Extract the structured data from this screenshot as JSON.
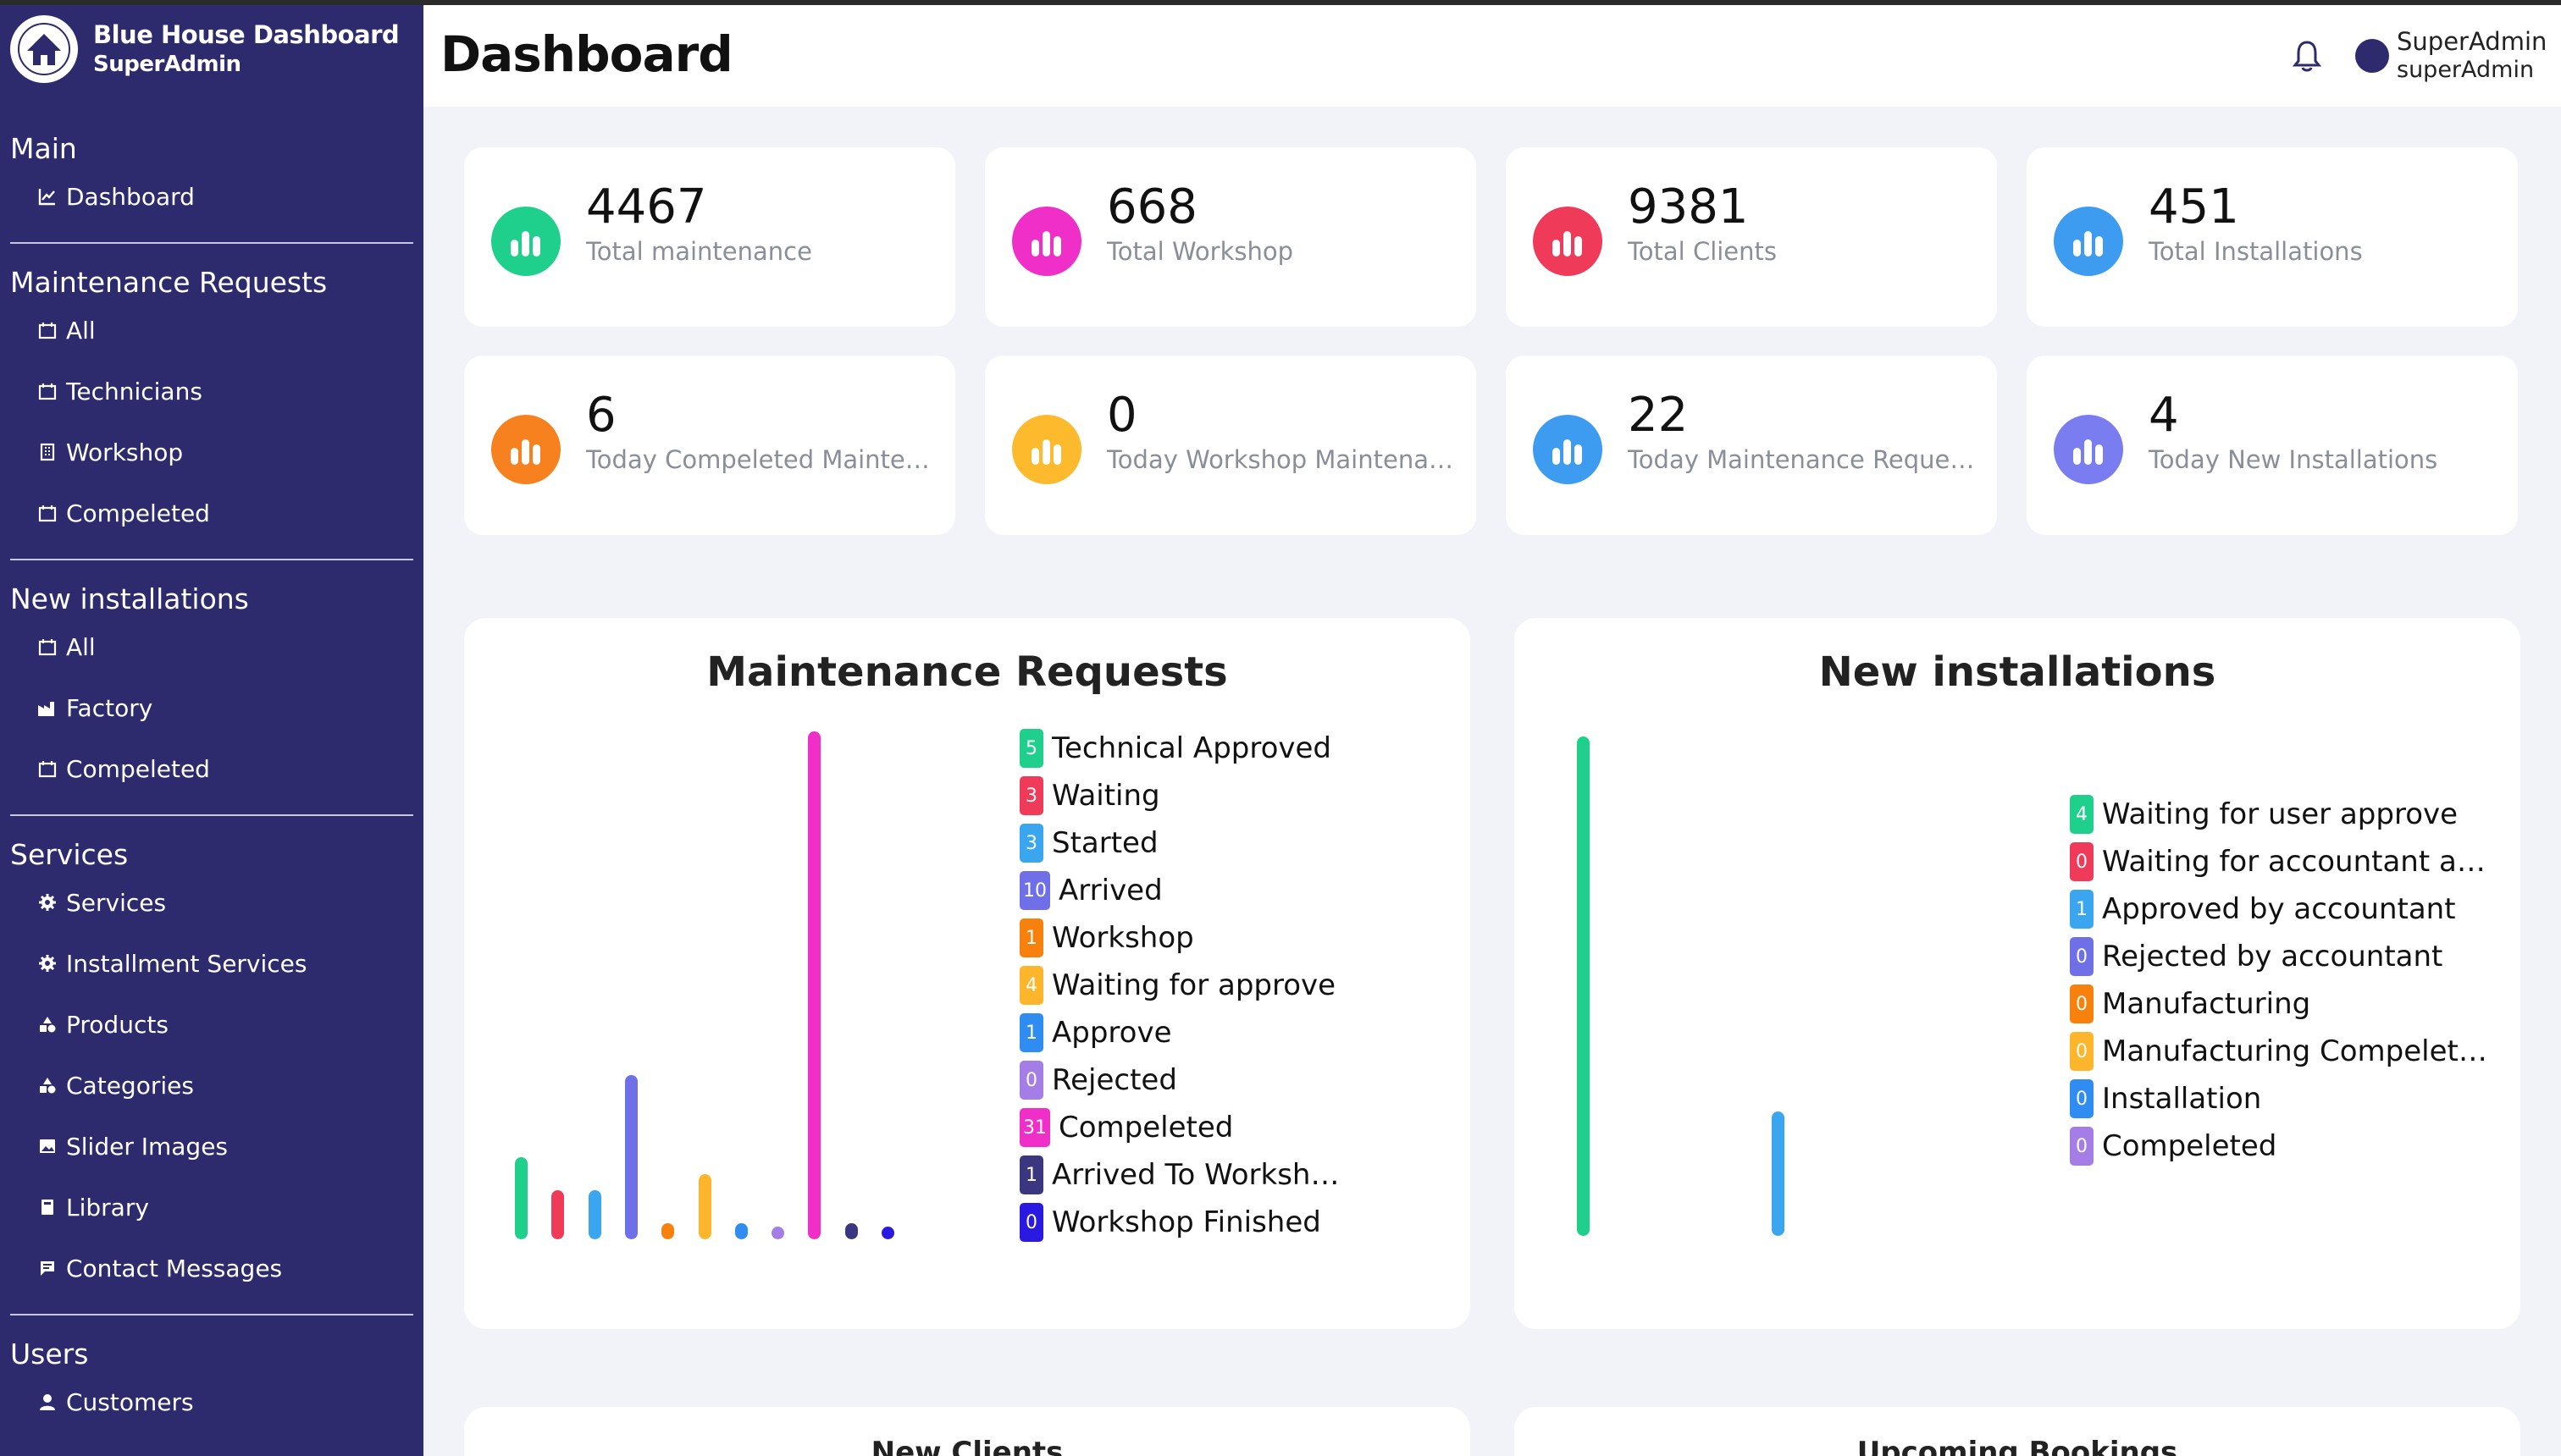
{
  "brand": {
    "title": "Blue House Dashboard",
    "subtitle": "SuperAdmin"
  },
  "sidebar": {
    "sections": [
      {
        "title": "Main",
        "items": [
          {
            "label": "Dashboard",
            "icon": "chart-icon"
          }
        ]
      },
      {
        "title": "Maintenance Requests",
        "items": [
          {
            "label": "All",
            "icon": "calendar-icon"
          },
          {
            "label": "Technicians",
            "icon": "calendar-icon"
          },
          {
            "label": "Workshop",
            "icon": "building-icon"
          },
          {
            "label": "Compeleted",
            "icon": "calendar-icon"
          }
        ]
      },
      {
        "title": "New installations",
        "items": [
          {
            "label": "All",
            "icon": "calendar-icon"
          },
          {
            "label": "Factory",
            "icon": "factory-icon"
          },
          {
            "label": "Compeleted",
            "icon": "calendar-icon"
          }
        ]
      },
      {
        "title": "Services",
        "items": [
          {
            "label": "Services",
            "icon": "gear-icon"
          },
          {
            "label": "Installment Services",
            "icon": "gear-icon"
          },
          {
            "label": "Products",
            "icon": "shapes-icon"
          },
          {
            "label": "Categories",
            "icon": "shapes-icon"
          },
          {
            "label": "Slider Images",
            "icon": "image-icon"
          },
          {
            "label": "Library",
            "icon": "book-icon"
          },
          {
            "label": "Contact Messages",
            "icon": "message-icon"
          }
        ]
      },
      {
        "title": "Users",
        "items": [
          {
            "label": "Customers",
            "icon": "person-icon"
          }
        ]
      }
    ]
  },
  "header": {
    "title": "Dashboard",
    "user_name": "SuperAdmin",
    "user_role": "superAdmin"
  },
  "stats": [
    {
      "value": "4467",
      "label": "Total maintenance",
      "color": "#1fd08d"
    },
    {
      "value": "668",
      "label": "Total Workshop",
      "color": "#f02fc9"
    },
    {
      "value": "9381",
      "label": "Total Clients",
      "color": "#f03a5a"
    },
    {
      "value": "451",
      "label": "Total Installations",
      "color": "#3d9cf0"
    },
    {
      "value": "6",
      "label": "Today Compeleted Maintenance",
      "color": "#f7811e"
    },
    {
      "value": "0",
      "label": "Today Workshop Maintenance",
      "color": "#fdba2c"
    },
    {
      "value": "22",
      "label": "Today Maintenance Requests",
      "color": "#3d9cf0"
    },
    {
      "value": "4",
      "label": "Today New Installations",
      "color": "#7a7df0"
    }
  ],
  "chart_data": [
    {
      "type": "bar",
      "title": "Maintenance Requests",
      "categories": [
        "Technical Approved",
        "Waiting",
        "Started",
        "Arrived",
        "Workshop",
        "Waiting for approve",
        "Approve",
        "Rejected",
        "Compeleted",
        "Arrived To Workshop",
        "Workshop Finished"
      ],
      "values": [
        5,
        3,
        3,
        10,
        1,
        4,
        1,
        0,
        31,
        1,
        0
      ],
      "colors": [
        "#1fd08d",
        "#f03a5a",
        "#3ba6f0",
        "#6f6fe8",
        "#f7810c",
        "#fdb62b",
        "#2f8cf0",
        "#a57de6",
        "#f02fc9",
        "#3b3680",
        "#2a19e0"
      ],
      "ylim": [
        0,
        31
      ]
    },
    {
      "type": "bar",
      "title": "New installations",
      "categories": [
        "Waiting for user approve",
        "Waiting for accountant approve",
        "Approved by accountant",
        "Rejected by accountant",
        "Manufacturing",
        "Manufacturing Compeleted",
        "Installation",
        "Compeleted"
      ],
      "values": [
        4,
        0,
        1,
        0,
        0,
        0,
        0,
        0
      ],
      "colors": [
        "#1fd08d",
        "#f03a5a",
        "#3ba6f0",
        "#6f6fe8",
        "#f7810c",
        "#fdb62b",
        "#2f8cf0",
        "#a57de6"
      ],
      "ylim": [
        0,
        4
      ]
    }
  ],
  "bottom_panels": [
    "New Clients",
    "Upcoming Bookings"
  ]
}
